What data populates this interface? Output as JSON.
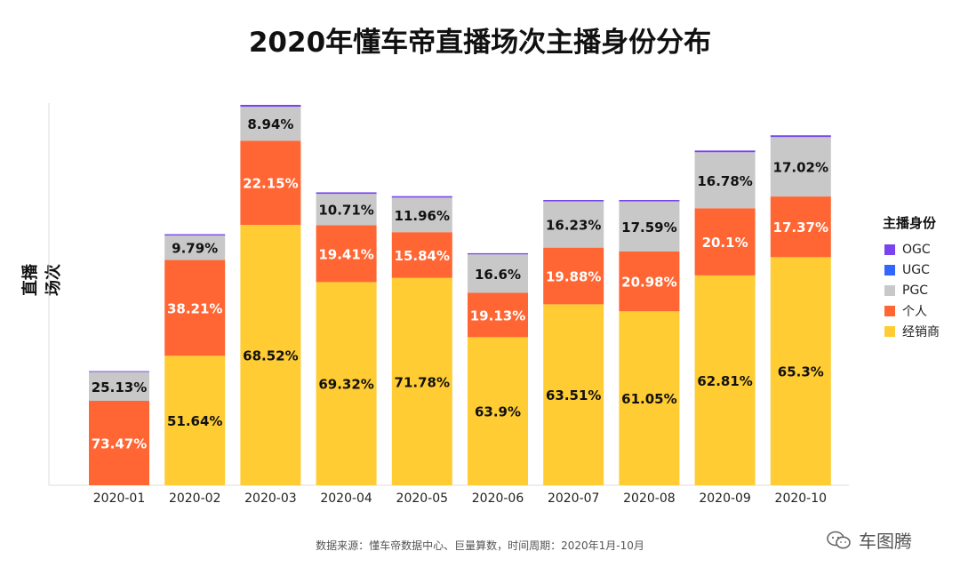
{
  "chart_data": {
    "type": "bar",
    "stacked": true,
    "title": "2020年懂车帝直播场次主播身份分布",
    "ylabel": "直播场次",
    "legend_title": "主播身份",
    "legend_position": "right",
    "categories": [
      "2020-01",
      "2020-02",
      "2020-03",
      "2020-04",
      "2020-05",
      "2020-06",
      "2020-07",
      "2020-08",
      "2020-09",
      "2020-10"
    ],
    "series": [
      {
        "name": "经销商",
        "color": "#FFCC33",
        "label_color": "#111111",
        "values": [
          0,
          51.64,
          68.52,
          69.32,
          71.78,
          63.9,
          63.51,
          61.05,
          62.81,
          65.3
        ],
        "labels": [
          "",
          "51.64%",
          "68.52%",
          "69.32%",
          "71.78%",
          "63.9%",
          "63.51%",
          "61.05%",
          "62.81%",
          "65.3%"
        ]
      },
      {
        "name": "个人",
        "color": "#FF6633",
        "label_color": "#ffffff",
        "values": [
          73.47,
          38.21,
          22.15,
          19.41,
          15.84,
          19.13,
          19.88,
          20.98,
          20.1,
          17.37
        ],
        "labels": [
          "73.47%",
          "38.21%",
          "22.15%",
          "19.41%",
          "15.84%",
          "19.13%",
          "19.88%",
          "20.98%",
          "20.1%",
          "17.37%"
        ]
      },
      {
        "name": "PGC",
        "color": "#C8C8C8",
        "label_color": "#111111",
        "values": [
          25.13,
          9.79,
          8.94,
          10.71,
          11.96,
          16.6,
          16.23,
          17.59,
          16.78,
          17.02
        ],
        "labels": [
          "25.13%",
          "9.79%",
          "8.94%",
          "10.71%",
          "11.96%",
          "16.6%",
          "16.23%",
          "17.59%",
          "16.78%",
          "17.02%"
        ]
      },
      {
        "name": "UGC",
        "color": "#3366FF",
        "label_color": "#111111",
        "values": [
          0,
          0,
          0,
          0,
          0,
          0,
          0,
          0,
          0,
          0
        ],
        "labels": [
          "",
          "",
          "",
          "",
          "",
          "",
          "",
          "",
          "",
          ""
        ]
      },
      {
        "name": "OGC",
        "color": "#7744EE",
        "label_color": "#111111",
        "values": [
          0.7,
          0.5,
          0.5,
          0.5,
          0.5,
          0.5,
          0.5,
          0.5,
          0.5,
          0.5
        ],
        "labels": [
          "",
          "",
          "",
          "",
          "",
          "",
          "",
          "",
          "",
          ""
        ]
      }
    ],
    "totals_relative": [
      0.3,
      0.66,
      1.0,
      0.77,
      0.76,
      0.61,
      0.75,
      0.75,
      0.88,
      0.92
    ],
    "grid": false
  },
  "legend_order": [
    "OGC",
    "UGC",
    "PGC",
    "个人",
    "经销商"
  ],
  "legend_colors": [
    "#7744EE",
    "#3366FF",
    "#C8C8C8",
    "#FF6633",
    "#FFCC33"
  ],
  "footer": {
    "source": "数据来源：懂车帝数据中心、巨量算数，时间周期：2020年1月-10月",
    "brand": "车图腾",
    "brand_icon": "wechat-icon"
  }
}
